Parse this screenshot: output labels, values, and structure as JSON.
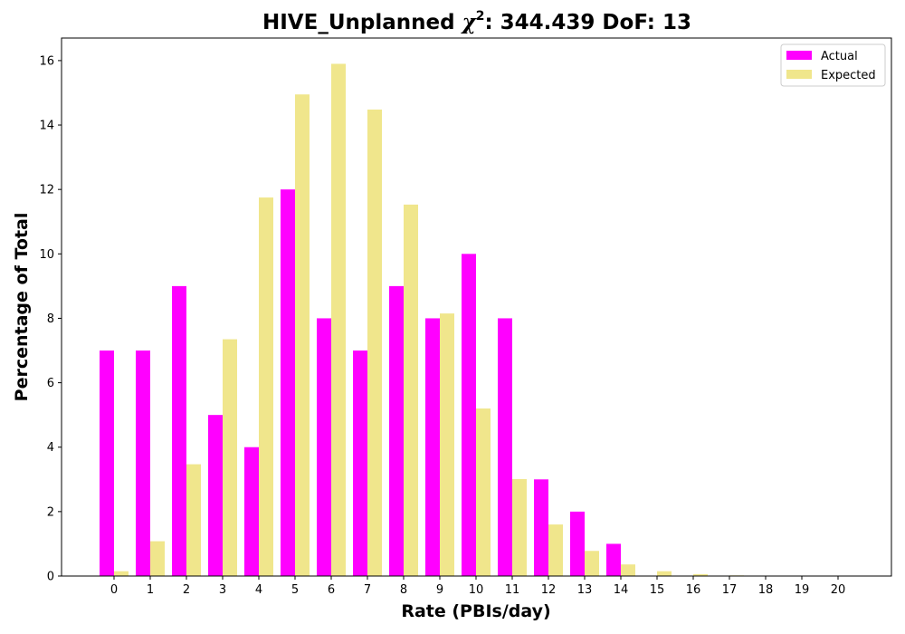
{
  "chart_data": {
    "type": "bar",
    "title_prefix": "HIVE_Unplanned ",
    "title_chi": "χ",
    "title_sup": "2",
    "title_suffix": ": 344.439 DoF: 13",
    "xlabel": "Rate (PBIs/day)",
    "ylabel": "Percentage of Total",
    "categories": [
      "0",
      "1",
      "2",
      "3",
      "4",
      "5",
      "6",
      "7",
      "8",
      "9",
      "10",
      "11",
      "12",
      "13",
      "14",
      "15",
      "16",
      "17",
      "18",
      "19",
      "20"
    ],
    "series": [
      {
        "name": "Actual",
        "color": "#ff00ff",
        "values": [
          7,
          7,
          9,
          5,
          4,
          12,
          8,
          7,
          9,
          8,
          10,
          8,
          3,
          2,
          1,
          0,
          0,
          0,
          0,
          0,
          0
        ]
      },
      {
        "name": "Expected",
        "color": "#f0e68c",
        "values": [
          0.15,
          1.08,
          3.47,
          7.35,
          11.75,
          14.95,
          15.9,
          14.48,
          11.53,
          8.15,
          5.2,
          3.01,
          1.6,
          0.78,
          0.36,
          0.15,
          0.06,
          0.02,
          0.01,
          0.0,
          0.0
        ]
      }
    ],
    "yticks": [
      "0",
      "2",
      "4",
      "6",
      "8",
      "10",
      "12",
      "14",
      "16"
    ],
    "ylim": [
      0,
      16.7
    ],
    "grid": false,
    "legend_position": "top-right"
  }
}
